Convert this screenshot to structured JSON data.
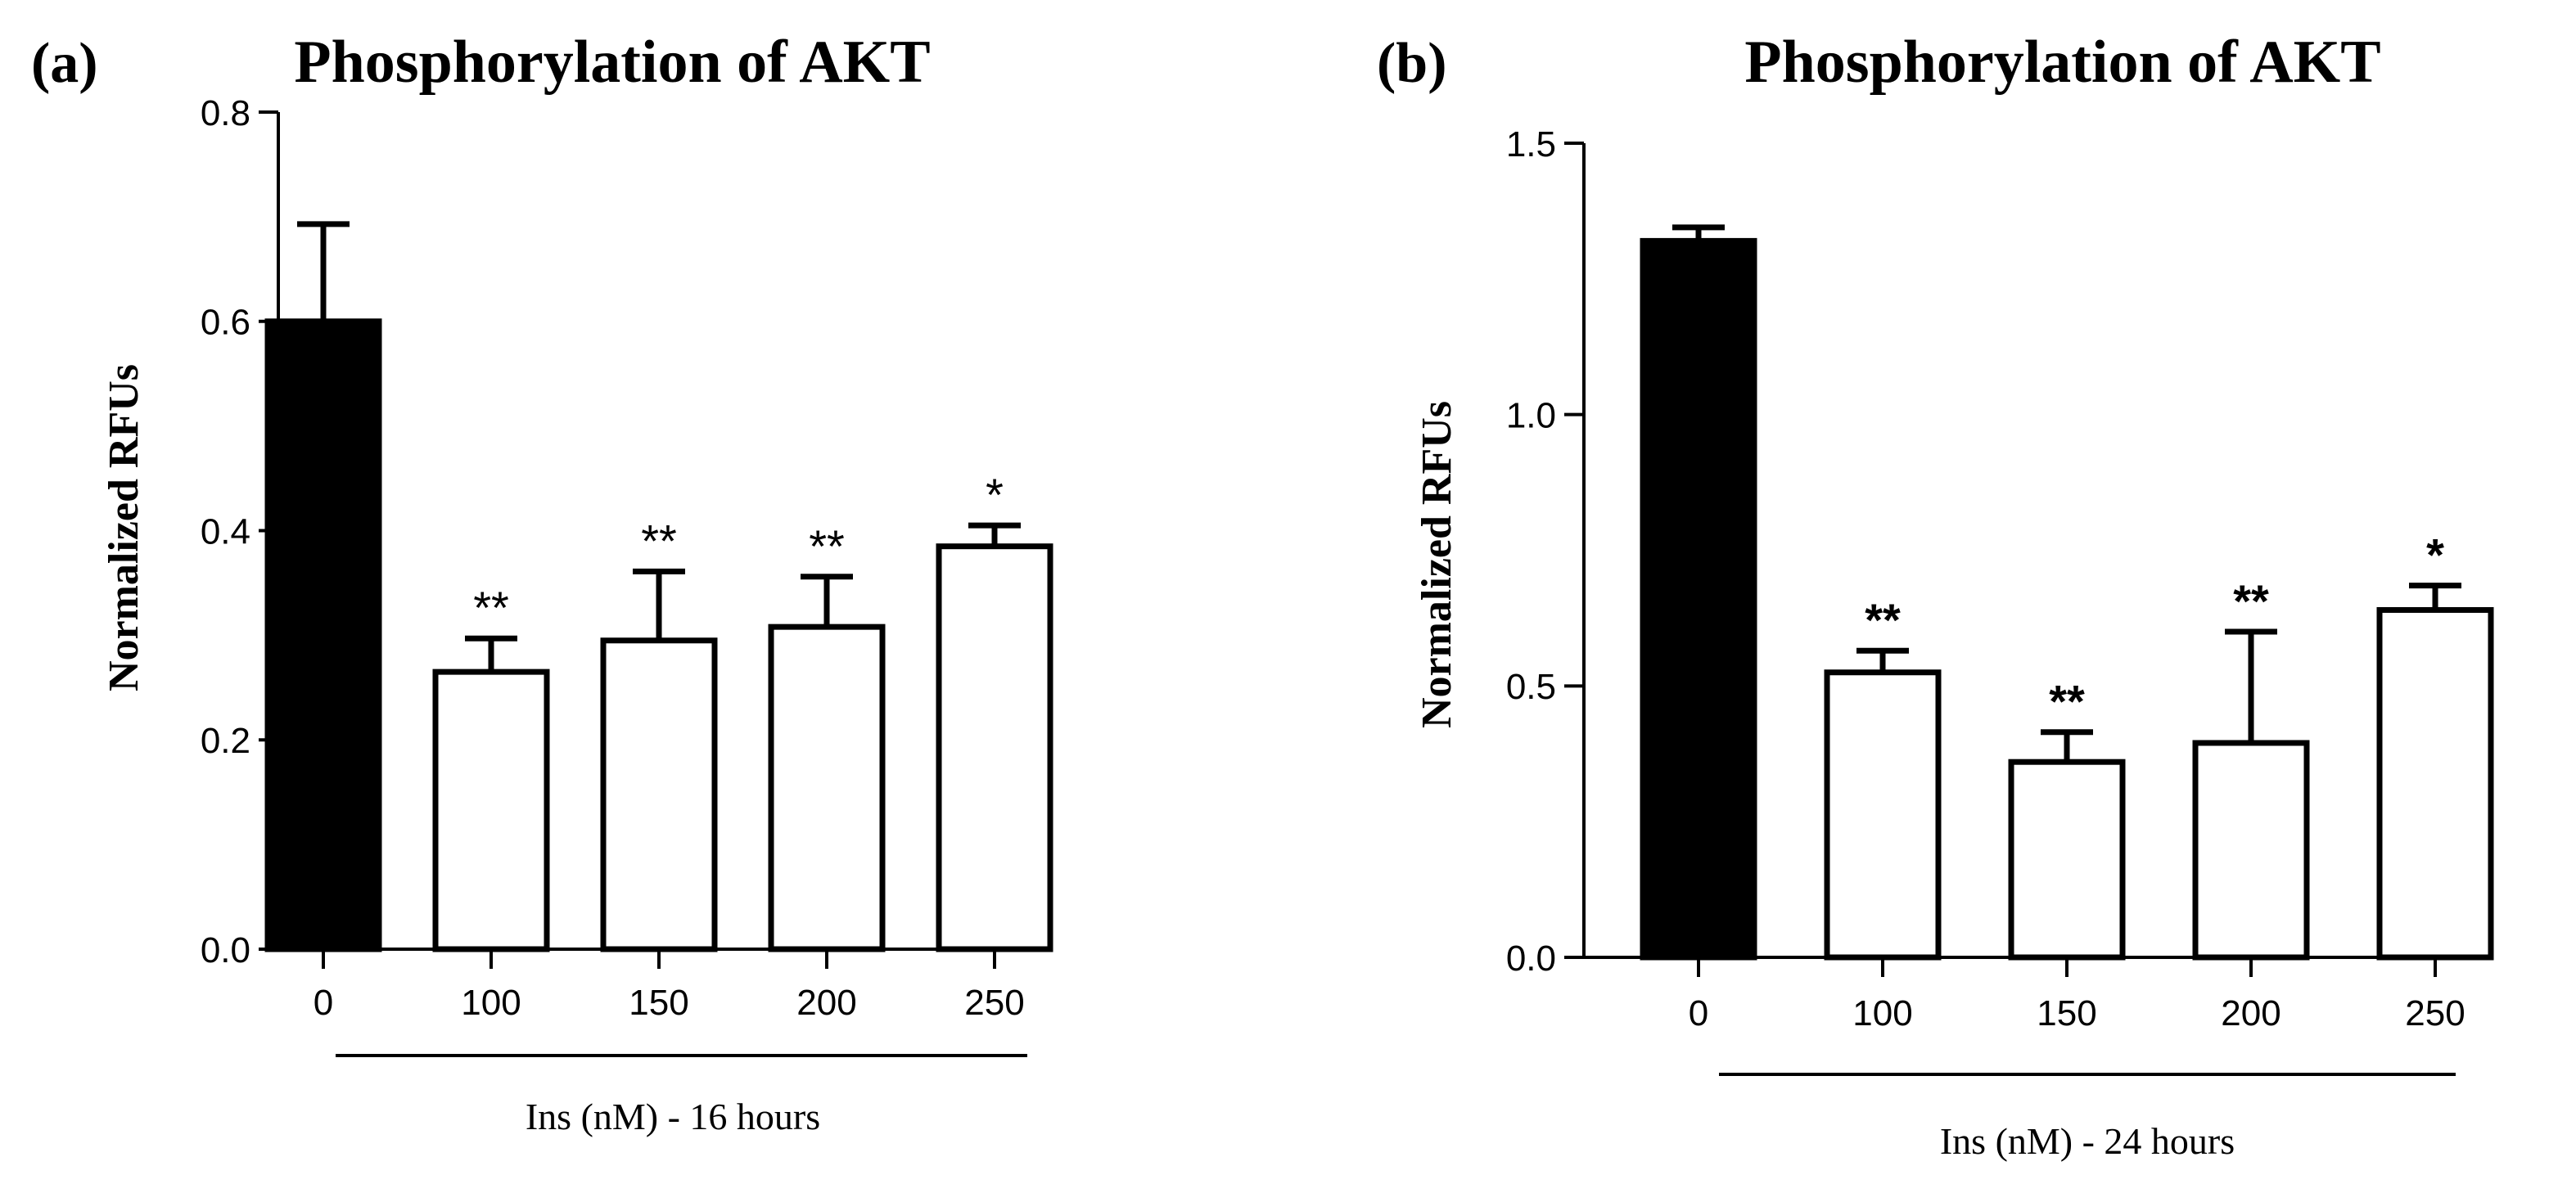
{
  "chart_data": [
    {
      "panel_label": "(a)",
      "type": "bar",
      "title": "Phosphorylation of AKT",
      "ylabel": "Normalized RFUs",
      "xlabel": "Ins (nM) - 16 hours",
      "categories": [
        "0",
        "100",
        "150",
        "200",
        "250"
      ],
      "values": [
        0.6,
        0.265,
        0.295,
        0.308,
        0.385
      ],
      "errors": [
        0.093,
        0.032,
        0.066,
        0.048,
        0.02
      ],
      "significance": [
        "",
        "**",
        "**",
        "**",
        "*"
      ],
      "bar_fill": [
        "#000000",
        "#ffffff",
        "#ffffff",
        "#ffffff",
        "#ffffff"
      ],
      "ylim": [
        0,
        0.8
      ],
      "yticks": [
        0.0,
        0.2,
        0.4,
        0.6,
        0.8
      ],
      "ytick_labels": [
        "0.0",
        "0.2",
        "0.4",
        "0.6",
        "0.8"
      ]
    },
    {
      "panel_label": "(b)",
      "type": "bar",
      "title": "Phosphorylation of AKT",
      "ylabel": "Normalized RFUs",
      "xlabel": "Ins (nM) - 24 hours",
      "categories": [
        "0",
        "100",
        "150",
        "200",
        "250"
      ],
      "values": [
        1.32,
        0.525,
        0.36,
        0.395,
        0.64
      ],
      "errors": [
        0.025,
        0.04,
        0.055,
        0.205,
        0.045
      ],
      "significance": [
        "",
        "**",
        "**",
        "**",
        "*"
      ],
      "bar_fill": [
        "#000000",
        "#ffffff",
        "#ffffff",
        "#ffffff",
        "#ffffff"
      ],
      "ylim": [
        0,
        1.5
      ],
      "yticks": [
        0.0,
        0.5,
        1.0,
        1.5
      ],
      "ytick_labels": [
        "0.0",
        "0.5",
        "1.0",
        "1.5"
      ]
    }
  ]
}
